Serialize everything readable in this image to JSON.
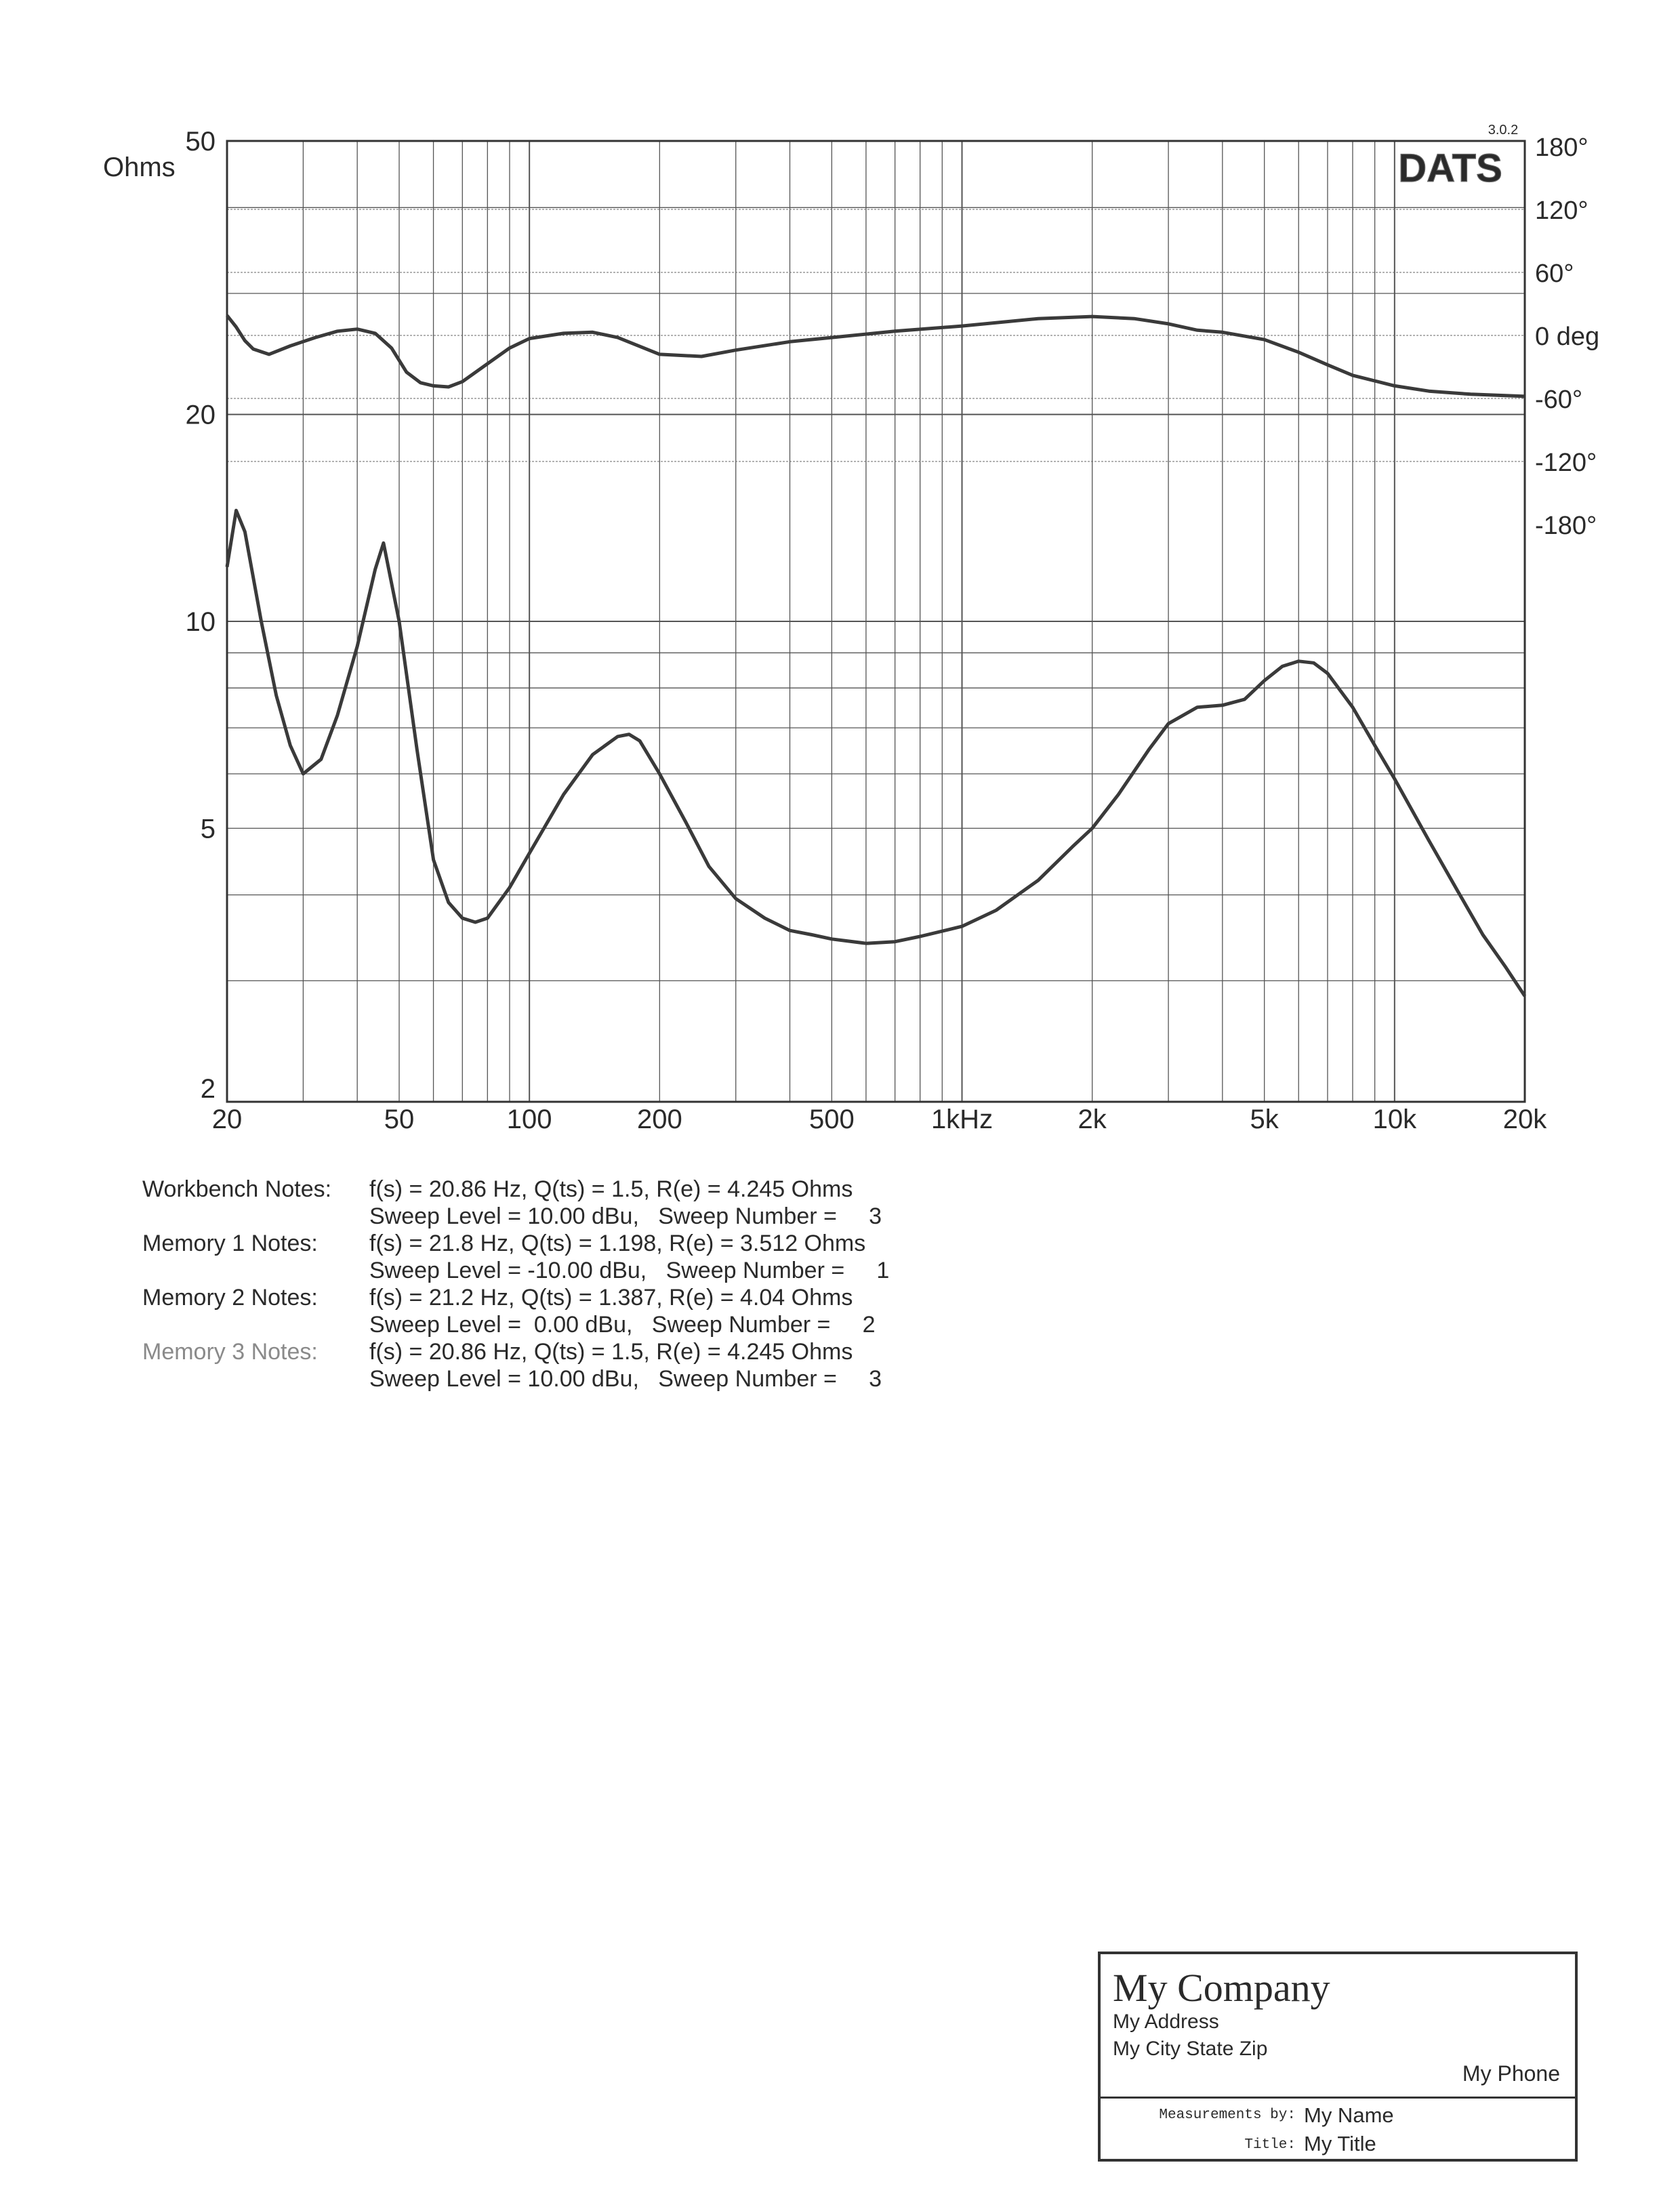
{
  "chart_data": {
    "type": "line",
    "title": "",
    "software_logo": "DATS",
    "version": "3.0.2",
    "xlabel": "",
    "x_scale": "log",
    "xlim": [
      20,
      20000
    ],
    "x_ticks": [
      {
        "value": 20,
        "label": "20"
      },
      {
        "value": 50,
        "label": "50"
      },
      {
        "value": 100,
        "label": "100"
      },
      {
        "value": 200,
        "label": "200"
      },
      {
        "value": 500,
        "label": "500"
      },
      {
        "value": 1000,
        "label": "1kHz"
      },
      {
        "value": 2000,
        "label": "2k"
      },
      {
        "value": 5000,
        "label": "5k"
      },
      {
        "value": 10000,
        "label": "10k"
      },
      {
        "value": 20000,
        "label": "20k"
      }
    ],
    "ylabel_left": "Ohms",
    "y_scale_left": "log",
    "ylim_left": [
      2,
      50
    ],
    "y_ticks_left": [
      {
        "value": 2,
        "label": "2"
      },
      {
        "value": 5,
        "label": "5"
      },
      {
        "value": 10,
        "label": "10"
      },
      {
        "value": 20,
        "label": "20"
      },
      {
        "value": 50,
        "label": "50"
      }
    ],
    "y_ticks_right": [
      {
        "value": 180,
        "label": "180°"
      },
      {
        "value": 120,
        "label": "120°"
      },
      {
        "value": 60,
        "label": "60°"
      },
      {
        "value": 0,
        "label": "0 deg"
      },
      {
        "value": -60,
        "label": "-60°"
      },
      {
        "value": -120,
        "label": "-120°"
      },
      {
        "value": -180,
        "label": "-180°"
      }
    ],
    "grid": true,
    "series": [
      {
        "color": "#3a3a3a",
        "axis": "left",
        "x": [
          20,
          21,
          22,
          24,
          26,
          28,
          30,
          33,
          36,
          40,
          44,
          46,
          50,
          55,
          60,
          65,
          70,
          75,
          80,
          90,
          100,
          120,
          140,
          160,
          170,
          180,
          200,
          230,
          260,
          300,
          350,
          400,
          450,
          500,
          600,
          700,
          800,
          1000,
          1200,
          1500,
          1800,
          2000,
          2300,
          2700,
          3000,
          3500,
          4000,
          4500,
          5000,
          5500,
          6000,
          6500,
          7000,
          8000,
          9000,
          10000,
          12000,
          14000,
          16000,
          18000,
          20000
        ],
        "values": [
          12.0,
          14.5,
          13.5,
          10.0,
          7.8,
          6.6,
          6.0,
          6.3,
          7.3,
          9.2,
          11.9,
          13.0,
          10.0,
          6.5,
          4.5,
          3.9,
          3.7,
          3.65,
          3.7,
          4.1,
          4.6,
          5.6,
          6.4,
          6.8,
          6.85,
          6.7,
          6.0,
          5.1,
          4.4,
          3.95,
          3.7,
          3.55,
          3.5,
          3.45,
          3.4,
          3.42,
          3.48,
          3.6,
          3.8,
          4.2,
          4.7,
          5.0,
          5.6,
          6.5,
          7.1,
          7.5,
          7.55,
          7.7,
          8.2,
          8.6,
          8.75,
          8.7,
          8.4,
          7.5,
          6.6,
          5.9,
          4.8,
          4.05,
          3.5,
          3.15,
          2.85
        ]
      },
      {
        "color": "#3a3a3a",
        "axis": "right",
        "x": [
          20,
          21,
          22,
          23,
          25,
          28,
          32,
          36,
          40,
          44,
          48,
          52,
          56,
          60,
          65,
          70,
          80,
          90,
          100,
          120,
          140,
          160,
          200,
          250,
          300,
          400,
          500,
          700,
          1000,
          1500,
          2000,
          2500,
          3000,
          3500,
          4000,
          5000,
          6000,
          7000,
          8000,
          10000,
          12000,
          15000,
          20000
        ],
        "values": [
          19,
          8,
          -5,
          -13,
          -18,
          -10,
          -2,
          4,
          6,
          2,
          -12,
          -35,
          -45,
          -48,
          -49,
          -44,
          -27,
          -12,
          -3,
          2,
          3,
          -2,
          -18,
          -20,
          -14,
          -6,
          -2,
          4,
          9,
          16,
          18,
          16,
          11,
          5,
          3,
          -4,
          -16,
          -28,
          -38,
          -48,
          -53,
          -56,
          -58
        ]
      }
    ]
  },
  "notes": [
    {
      "label": "Workbench Notes:",
      "faded": false,
      "line1": "f(s) = 20.86 Hz, Q(ts) = 1.5, R(e) = 4.245 Ohms",
      "line2": "Sweep Level = 10.00 dBu,   Sweep Number =     3"
    },
    {
      "label": "Memory 1 Notes:",
      "faded": false,
      "line1": "f(s) = 21.8 Hz, Q(ts) = 1.198, R(e) = 3.512 Ohms",
      "line2": "Sweep Level = -10.00 dBu,   Sweep Number =     1"
    },
    {
      "label": "Memory 2 Notes:",
      "faded": false,
      "line1": "f(s) = 21.2 Hz, Q(ts) = 1.387, R(e) = 4.04 Ohms",
      "line2": "Sweep Level =  0.00 dBu,   Sweep Number =     2"
    },
    {
      "label": "Memory 3 Notes:",
      "faded": true,
      "line1": "f(s) = 20.86 Hz, Q(ts) = 1.5, R(e) = 4.245 Ohms",
      "line2": "Sweep Level = 10.00 dBu,   Sweep Number =     3"
    }
  ],
  "title_block": {
    "company": "My Company",
    "address": "My Address",
    "city": "My City State Zip",
    "phone": "My Phone",
    "measurements_label": "Measurements by:",
    "measurements_value": "My Name",
    "title_label": "Title:",
    "title_value": "My Title"
  }
}
